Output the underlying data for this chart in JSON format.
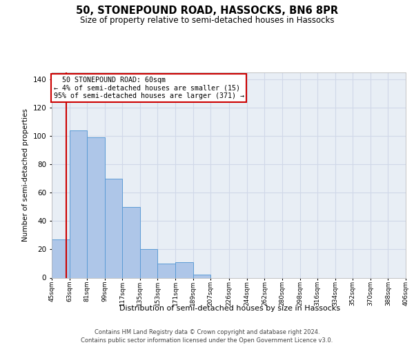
{
  "title_line1": "50, STONEPOUND ROAD, HASSOCKS, BN6 8PR",
  "title_line2": "Size of property relative to semi-detached houses in Hassocks",
  "xlabel": "Distribution of semi-detached houses by size in Hassocks",
  "ylabel": "Number of semi-detached properties",
  "footer_line1": "Contains HM Land Registry data © Crown copyright and database right 2024.",
  "footer_line2": "Contains public sector information licensed under the Open Government Licence v3.0.",
  "annotation_line1": "  50 STONEPOUND ROAD: 60sqm",
  "annotation_line2": "← 4% of semi-detached houses are smaller (15)",
  "annotation_line3": "95% of semi-detached houses are larger (371) →",
  "property_size": 60,
  "bin_edges": [
    45,
    63,
    81,
    99,
    117,
    135,
    153,
    171,
    189,
    207,
    226,
    244,
    262,
    280,
    298,
    316,
    334,
    352,
    370,
    388,
    406
  ],
  "bar_heights": [
    27,
    104,
    99,
    70,
    50,
    20,
    10,
    11,
    2,
    0,
    0,
    0,
    0,
    0,
    0,
    0,
    0,
    0,
    0,
    0
  ],
  "bar_color": "#aec6e8",
  "bar_edge_color": "#5b9bd5",
  "grid_color": "#d0d8e8",
  "background_color": "#e8eef5",
  "red_line_color": "#cc0000",
  "annotation_box_color": "#ffffff",
  "annotation_box_edge": "#cc0000",
  "ylim": [
    0,
    145
  ],
  "yticks": [
    0,
    20,
    40,
    60,
    80,
    100,
    120,
    140
  ]
}
